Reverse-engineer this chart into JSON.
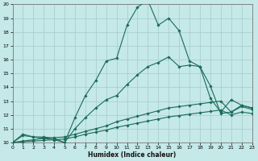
{
  "xlabel": "Humidex (Indice chaleur)",
  "background_color": "#c5e8e8",
  "grid_color": "#aacfcf",
  "line_color": "#1a6b5a",
  "xlim": [
    0,
    23
  ],
  "ylim": [
    10,
    20
  ],
  "xticks": [
    0,
    1,
    2,
    3,
    4,
    5,
    6,
    7,
    8,
    9,
    10,
    11,
    12,
    13,
    14,
    15,
    16,
    17,
    18,
    19,
    20,
    21,
    22,
    23
  ],
  "yticks": [
    10,
    11,
    12,
    13,
    14,
    15,
    16,
    17,
    18,
    19,
    20
  ],
  "line1_x": [
    0,
    1,
    2,
    3,
    4,
    5,
    6,
    7,
    8,
    9,
    10,
    11,
    12,
    13,
    14,
    15,
    16,
    17,
    18,
    19,
    20,
    21,
    22,
    23
  ],
  "line1_y": [
    10.0,
    10.6,
    10.4,
    10.4,
    10.3,
    10.0,
    11.8,
    13.4,
    14.5,
    15.9,
    16.1,
    18.5,
    19.8,
    20.3,
    18.5,
    19.0,
    18.1,
    15.9,
    15.5,
    14.1,
    12.1,
    12.2,
    12.6,
    12.4
  ],
  "line2_x": [
    0,
    1,
    2,
    3,
    4,
    5,
    6,
    7,
    8,
    9,
    10,
    11,
    12,
    13,
    14,
    15,
    16,
    17,
    18,
    19,
    20,
    21,
    22,
    23
  ],
  "line2_y": [
    10.0,
    10.5,
    10.4,
    10.3,
    10.2,
    10.0,
    11.0,
    11.8,
    12.5,
    13.1,
    13.4,
    14.2,
    14.9,
    15.5,
    15.8,
    16.2,
    15.5,
    15.6,
    15.5,
    13.2,
    12.2,
    13.1,
    12.7,
    12.5
  ],
  "line3_x": [
    0,
    1,
    2,
    3,
    4,
    5,
    6,
    7,
    8,
    9,
    10,
    11,
    12,
    13,
    14,
    15,
    16,
    17,
    18,
    19,
    20,
    21,
    22,
    23
  ],
  "line3_y": [
    10.0,
    10.1,
    10.2,
    10.3,
    10.35,
    10.4,
    10.6,
    10.8,
    11.0,
    11.2,
    11.5,
    11.7,
    11.9,
    12.1,
    12.3,
    12.5,
    12.6,
    12.7,
    12.8,
    12.9,
    13.0,
    12.2,
    12.7,
    12.5
  ],
  "line4_x": [
    0,
    1,
    2,
    3,
    4,
    5,
    6,
    7,
    8,
    9,
    10,
    11,
    12,
    13,
    14,
    15,
    16,
    17,
    18,
    19,
    20,
    21,
    22,
    23
  ],
  "line4_y": [
    10.0,
    10.05,
    10.1,
    10.15,
    10.2,
    10.25,
    10.4,
    10.6,
    10.75,
    10.9,
    11.1,
    11.25,
    11.4,
    11.55,
    11.7,
    11.85,
    11.95,
    12.05,
    12.15,
    12.25,
    12.35,
    12.0,
    12.2,
    12.1
  ]
}
